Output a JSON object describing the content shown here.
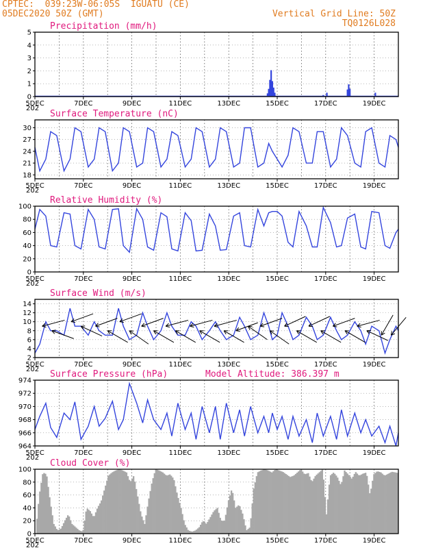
{
  "header": {
    "line1": "CPTEC:  039:23W-06:05S  IGUATU (CE)",
    "line2": "05DEC2020 50Z (GMT)",
    "right1": "Vertical Grid Line: 50Z",
    "right2": "TQ0126L028"
  },
  "colors": {
    "header": "#e07b1f",
    "title": "#e0197d",
    "series": "#3344dd",
    "cloud": "#a8a8a8"
  },
  "x_axis": {
    "start_day": 5,
    "end_day": 20,
    "tick_labels": [
      "5DEC",
      "7DEC",
      "9DEC",
      "11DEC",
      "13DEC",
      "15DEC",
      "17DEC",
      "19DEC"
    ],
    "tick_days": [
      5,
      7,
      9,
      11,
      13,
      15,
      17,
      19
    ],
    "year_stub": "202"
  },
  "chart_data": [
    {
      "type": "bar",
      "title": "Precipitation (mm/h)",
      "ylim": [
        0,
        5
      ],
      "yticks": [
        "0",
        "1",
        "2",
        "3",
        "4",
        "5"
      ],
      "x": [
        14.6,
        14.65,
        14.7,
        14.75,
        14.8,
        14.85,
        14.9,
        16.9,
        17.05,
        17.9,
        17.95,
        18.0,
        19.05
      ],
      "values": [
        0.25,
        0.6,
        1.3,
        2.05,
        1.2,
        0.7,
        0.3,
        0.12,
        0.3,
        0.55,
        0.95,
        0.6,
        0.3
      ]
    },
    {
      "type": "line",
      "title": "Surface Temperature (nC)",
      "ylim": [
        17,
        32
      ],
      "yticks": [
        "18",
        "21",
        "24",
        "27",
        "30"
      ],
      "x": [
        5.0,
        5.2,
        5.45,
        5.65,
        5.9,
        6.2,
        6.45,
        6.65,
        6.9,
        7.2,
        7.45,
        7.65,
        7.9,
        8.2,
        8.45,
        8.65,
        8.9,
        9.2,
        9.45,
        9.65,
        9.9,
        10.2,
        10.45,
        10.65,
        10.9,
        11.2,
        11.45,
        11.65,
        11.9,
        12.2,
        12.45,
        12.65,
        12.9,
        13.2,
        13.45,
        13.65,
        13.9,
        14.2,
        14.45,
        14.65,
        14.8,
        15.0,
        15.2,
        15.45,
        15.65,
        15.9,
        16.2,
        16.45,
        16.65,
        16.9,
        17.2,
        17.45,
        17.65,
        17.9,
        18.2,
        18.45,
        18.65,
        18.9,
        19.2,
        19.45,
        19.65,
        19.9,
        20.0
      ],
      "values": [
        25,
        19,
        22,
        29,
        28,
        19,
        22,
        30,
        29,
        20,
        22,
        30,
        29,
        19,
        21,
        30,
        29,
        20,
        21,
        30,
        29,
        20,
        22,
        29,
        28,
        20,
        22,
        30,
        29,
        20,
        22,
        30,
        29,
        20,
        21,
        30,
        30,
        20,
        21,
        26,
        24,
        22,
        20,
        23,
        30,
        29,
        21,
        21,
        29,
        29,
        20,
        22,
        30,
        28,
        21,
        20,
        29,
        30,
        21,
        20,
        28,
        27,
        25
      ]
    },
    {
      "type": "line",
      "title": "Relative Humidity (%)",
      "ylim": [
        0,
        100
      ],
      "yticks": [
        "0",
        "20",
        "40",
        "60",
        "80",
        "100"
      ],
      "x": [
        5.0,
        5.2,
        5.45,
        5.65,
        5.9,
        6.2,
        6.45,
        6.65,
        6.9,
        7.2,
        7.45,
        7.65,
        7.9,
        8.2,
        8.45,
        8.65,
        8.9,
        9.2,
        9.45,
        9.65,
        9.9,
        10.2,
        10.45,
        10.65,
        10.9,
        11.2,
        11.45,
        11.65,
        11.9,
        12.2,
        12.45,
        12.65,
        12.9,
        13.2,
        13.45,
        13.65,
        13.9,
        14.2,
        14.45,
        14.65,
        14.8,
        15.0,
        15.2,
        15.45,
        15.65,
        15.9,
        16.2,
        16.45,
        16.65,
        16.9,
        17.2,
        17.45,
        17.65,
        17.9,
        18.2,
        18.45,
        18.65,
        18.9,
        19.2,
        19.45,
        19.65,
        19.9,
        20.0
      ],
      "values": [
        65,
        95,
        85,
        40,
        38,
        90,
        88,
        40,
        35,
        95,
        80,
        38,
        35,
        95,
        96,
        40,
        30,
        96,
        80,
        38,
        33,
        90,
        84,
        35,
        32,
        90,
        78,
        32,
        33,
        88,
        70,
        33,
        34,
        85,
        90,
        40,
        38,
        95,
        70,
        90,
        92,
        92,
        85,
        45,
        38,
        92,
        70,
        38,
        38,
        98,
        75,
        38,
        40,
        82,
        88,
        38,
        35,
        92,
        90,
        40,
        36,
        60,
        65
      ]
    },
    {
      "type": "line",
      "title": "Surface Wind (m/s)",
      "ylim": [
        2,
        15
      ],
      "yticks": [
        "2",
        "4",
        "6",
        "8",
        "10",
        "12",
        "14"
      ],
      "x": [
        5.0,
        5.2,
        5.45,
        5.65,
        5.9,
        6.2,
        6.45,
        6.65,
        6.9,
        7.2,
        7.45,
        7.65,
        7.9,
        8.2,
        8.45,
        8.65,
        8.9,
        9.2,
        9.45,
        9.65,
        9.9,
        10.2,
        10.45,
        10.65,
        10.9,
        11.2,
        11.45,
        11.65,
        11.9,
        12.2,
        12.45,
        12.65,
        12.9,
        13.2,
        13.45,
        13.65,
        13.9,
        14.2,
        14.45,
        14.65,
        14.8,
        15.0,
        15.2,
        15.45,
        15.65,
        15.9,
        16.2,
        16.45,
        16.65,
        16.9,
        17.2,
        17.45,
        17.65,
        17.9,
        18.2,
        18.45,
        18.65,
        18.9,
        19.2,
        19.45,
        19.65,
        19.9,
        20.0
      ],
      "values": [
        3,
        5,
        10,
        8,
        8,
        7,
        13,
        9,
        9,
        7,
        10,
        8,
        7,
        7,
        13,
        9,
        6,
        7,
        12,
        9,
        6,
        8,
        12,
        9,
        7,
        7,
        10,
        9,
        6,
        8,
        10,
        8,
        6,
        7,
        11,
        9,
        6,
        7,
        12,
        9,
        6,
        7,
        12,
        9,
        6,
        7,
        11,
        9,
        6,
        7,
        11,
        8,
        6,
        7,
        10,
        8,
        5,
        9,
        8,
        3,
        6,
        9,
        8
      ],
      "arrow_days": [
        5.3,
        5.7,
        6.5,
        6.9,
        7.5,
        8.0,
        8.5,
        8.9,
        9.4,
        9.9,
        10.4,
        10.8,
        11.4,
        11.8,
        12.4,
        12.8,
        13.3,
        13.8,
        14.3,
        14.7,
        15.3,
        15.8,
        16.3,
        16.8,
        17.3,
        17.8,
        18.3,
        18.7,
        19.3,
        19.7
      ],
      "arrow_speeds": [
        9,
        8,
        10,
        9,
        9,
        8,
        10,
        8,
        9,
        8,
        9,
        8,
        9,
        8,
        9,
        8,
        8,
        9,
        9,
        8,
        9,
        8,
        9,
        8,
        9,
        8,
        9,
        8,
        7,
        7
      ],
      "arrow_angles": [
        -15,
        20,
        -20,
        25,
        -20,
        30,
        -20,
        35,
        -20,
        30,
        -15,
        30,
        -15,
        30,
        -15,
        30,
        -20,
        35,
        -20,
        35,
        -25,
        30,
        -25,
        30,
        -20,
        30,
        -15,
        25,
        -60,
        -50
      ]
    },
    {
      "type": "line",
      "title": "Surface Pressure (hPa)",
      "annotation": "Model Altitude: 386.397 m",
      "ylim": [
        964,
        974
      ],
      "yticks": [
        "964",
        "966",
        "968",
        "970",
        "972",
        "974"
      ],
      "x": [
        5.0,
        5.2,
        5.45,
        5.65,
        5.9,
        6.2,
        6.45,
        6.65,
        6.9,
        7.2,
        7.45,
        7.65,
        7.9,
        8.2,
        8.45,
        8.65,
        8.9,
        9.2,
        9.45,
        9.65,
        9.9,
        10.2,
        10.45,
        10.65,
        10.9,
        11.2,
        11.45,
        11.65,
        11.9,
        12.2,
        12.45,
        12.65,
        12.9,
        13.2,
        13.45,
        13.65,
        13.9,
        14.2,
        14.45,
        14.65,
        14.8,
        15.0,
        15.2,
        15.45,
        15.65,
        15.9,
        16.2,
        16.45,
        16.65,
        16.9,
        17.2,
        17.45,
        17.65,
        17.9,
        18.2,
        18.45,
        18.65,
        18.9,
        19.2,
        19.45,
        19.65,
        19.9,
        20.0
      ],
      "values": [
        966.5,
        968.5,
        970.5,
        966.8,
        965.3,
        969,
        968,
        970.7,
        965,
        967,
        970,
        967,
        968.2,
        970.8,
        966.5,
        968,
        973.5,
        970.5,
        967.5,
        971,
        968,
        966.5,
        969,
        965.5,
        970.5,
        966.5,
        969,
        965,
        970,
        966,
        970,
        965,
        970.5,
        966,
        969.5,
        965.5,
        970,
        966,
        968.5,
        966,
        969,
        966.5,
        968.5,
        965,
        968.5,
        965.5,
        968,
        964.5,
        969,
        965.5,
        968.5,
        965,
        969.5,
        965.5,
        969,
        966,
        968,
        965.5,
        967,
        964.5,
        967,
        964,
        966
      ]
    },
    {
      "type": "area",
      "title": "Cloud Cover (%)",
      "ylim": [
        0,
        100
      ],
      "yticks": [
        "0",
        "20",
        "40",
        "60",
        "80",
        "100"
      ],
      "x": [
        5.0,
        5.15,
        5.3,
        5.45,
        5.6,
        5.75,
        5.9,
        6.05,
        6.2,
        6.35,
        6.5,
        6.65,
        6.8,
        6.95,
        7.1,
        7.25,
        7.4,
        7.55,
        7.7,
        7.85,
        8.0,
        8.15,
        8.3,
        8.45,
        8.6,
        8.75,
        8.9,
        9.05,
        9.2,
        9.35,
        9.5,
        9.65,
        9.8,
        9.95,
        10.1,
        10.25,
        10.4,
        10.55,
        10.7,
        10.85,
        11.0,
        11.15,
        11.3,
        11.45,
        11.6,
        11.75,
        11.9,
        12.05,
        12.2,
        12.35,
        12.5,
        12.65,
        12.8,
        12.95,
        13.1,
        13.25,
        13.4,
        13.55,
        13.7,
        13.85,
        14.0,
        14.15,
        14.3,
        14.45,
        14.6,
        14.75,
        14.9,
        15.05,
        15.2,
        15.35,
        15.5,
        15.65,
        15.8,
        15.95,
        16.1,
        16.25,
        16.4,
        16.55,
        16.7,
        16.85,
        17.0,
        17.15,
        17.3,
        17.45,
        17.6,
        17.75,
        17.9,
        18.05,
        18.2,
        18.35,
        18.5,
        18.65,
        18.8,
        18.95,
        19.1,
        19.25,
        19.4,
        19.55,
        19.7,
        19.85,
        20.0
      ],
      "values": [
        0,
        60,
        95,
        92,
        50,
        15,
        5,
        8,
        20,
        30,
        15,
        10,
        5,
        3,
        40,
        35,
        25,
        40,
        50,
        70,
        90,
        95,
        98,
        100,
        98,
        95,
        80,
        90,
        60,
        30,
        15,
        50,
        80,
        100,
        98,
        95,
        90,
        92,
        85,
        60,
        40,
        15,
        5,
        3,
        5,
        10,
        20,
        15,
        25,
        35,
        40,
        20,
        20,
        50,
        70,
        40,
        45,
        30,
        5,
        10,
        70,
        95,
        98,
        100,
        98,
        95,
        100,
        98,
        96,
        92,
        88,
        90,
        95,
        100,
        92,
        94,
        80,
        90,
        95,
        100,
        30,
        90,
        95,
        88,
        75,
        98,
        92,
        85,
        96,
        90,
        93,
        95,
        60,
        92,
        97,
        95,
        90,
        93,
        96,
        95,
        94
      ]
    }
  ]
}
